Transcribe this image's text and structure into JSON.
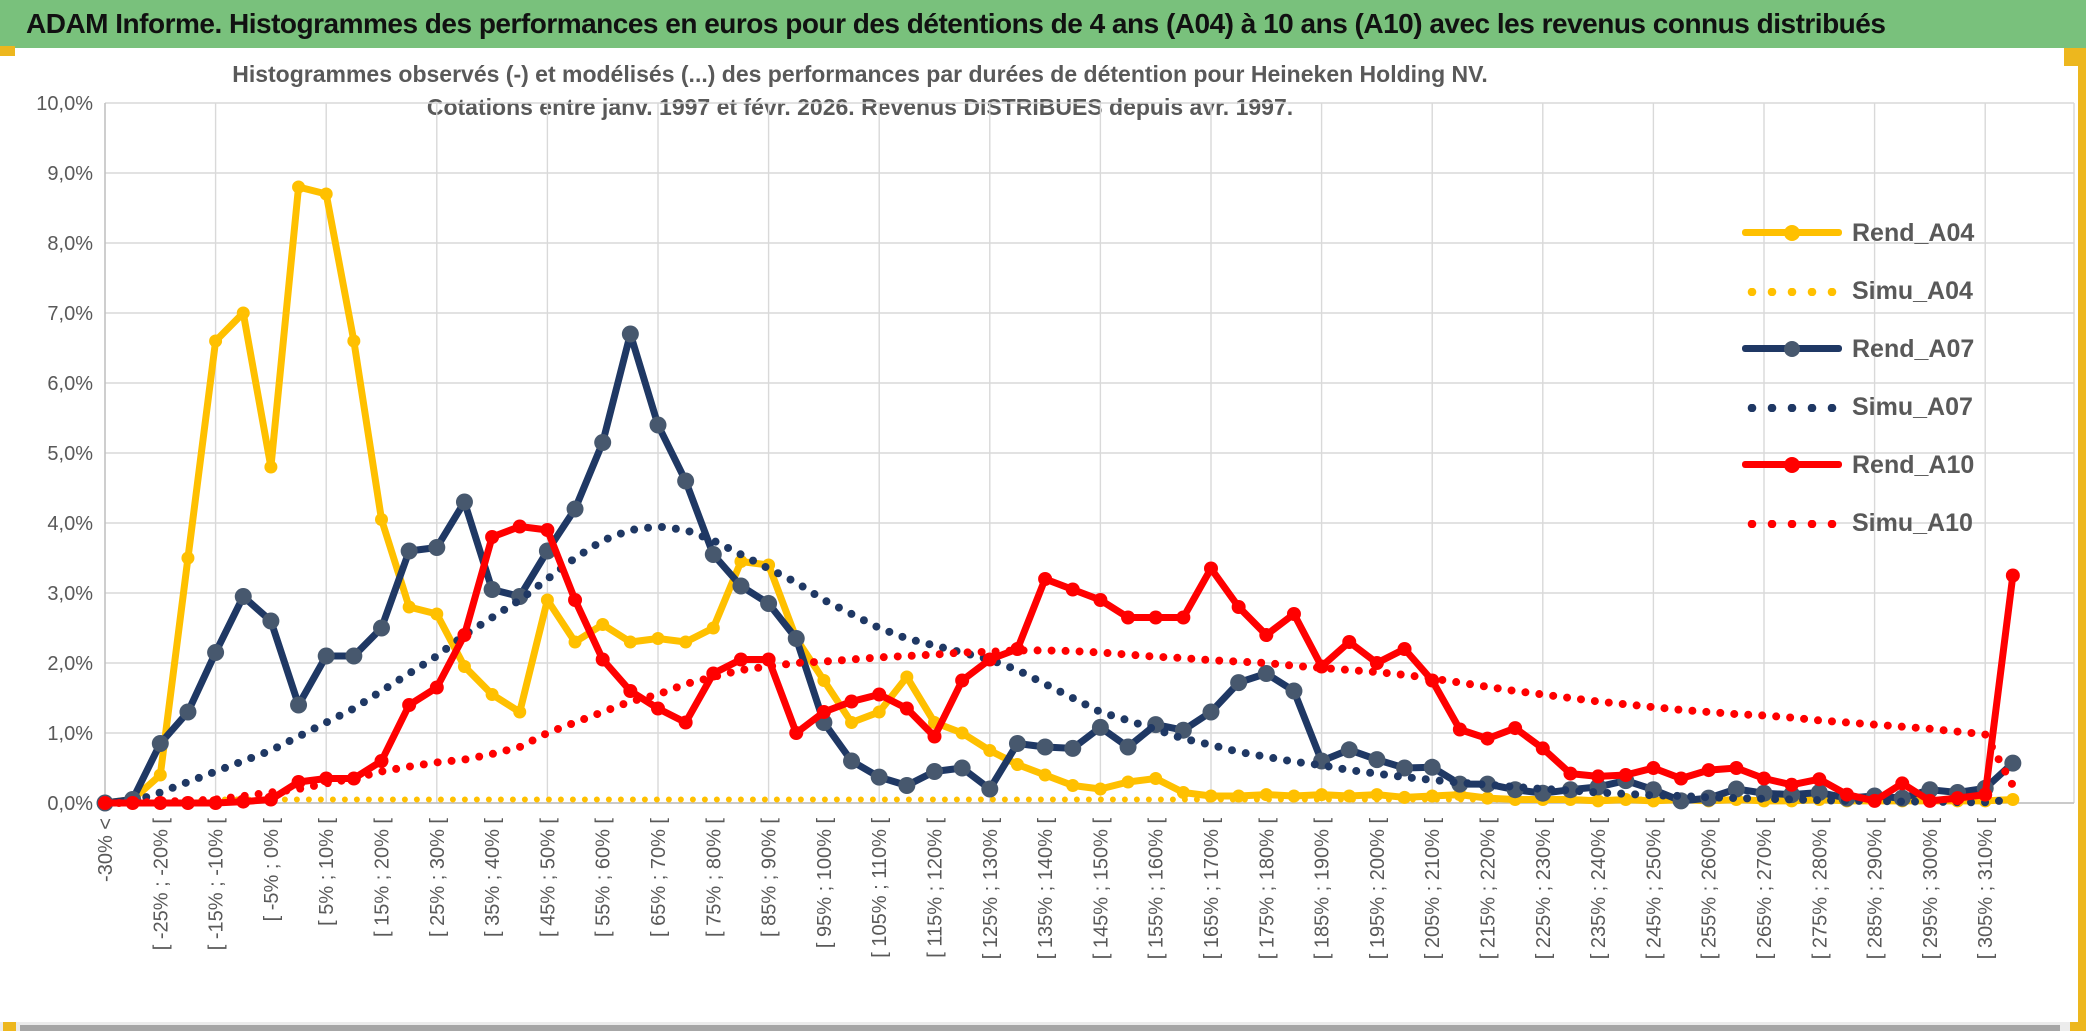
{
  "header": {
    "title": "ADAM Informe. Histogrammes des performances en euros pour des détentions de 4 ans (A04) à 10 ans (A10) avec les revenus connus distribués"
  },
  "colors": {
    "header_green": "#79C17C",
    "window_accent_gold": "#EDB71E",
    "series_gold": "#FFC000",
    "series_navy": "#1F3864",
    "series_navy_marker": "#47586E",
    "series_red": "#FF0000",
    "gridline": "#D9D9D9",
    "axis_text": "#595959"
  },
  "chart_data": {
    "type": "line",
    "title_line1": "Histogrammes observés (-) et modélisés (...) des performances par durées de détention pour Heineken Holding NV.",
    "title_line2": "Cotations entre janv. 1997 et févr. 2026. Revenus DISTRIBUES depuis avr. 1997.",
    "ylim": [
      0,
      10
    ],
    "grid": true,
    "legend_position": "right",
    "y_ticks": [
      "0,0%",
      "1,0%",
      "2,0%",
      "3,0%",
      "4,0%",
      "5,0%",
      "6,0%",
      "7,0%",
      "8,0%",
      "9,0%",
      "10,0%"
    ],
    "categories": [
      "-30% <",
      "",
      "[ -25% ; -20% [",
      "",
      "[ -15% ; -10% [",
      "",
      "[ -5% ; 0% [",
      "",
      "[ 5% ; 10% [",
      "",
      "[ 15% ; 20% [",
      "",
      "[ 25% ; 30% [",
      "",
      "[ 35% ; 40% [",
      "",
      "[ 45% ; 50% [",
      "",
      "[ 55% ; 60% [",
      "",
      "[ 65% ; 70% [",
      "",
      "[ 75% ; 80% [",
      "",
      "[ 85% ; 90% [",
      "",
      "[ 95% ; 100% [",
      "",
      "[ 105% ; 110% [",
      "",
      "[ 115% ; 120% [",
      "",
      "[ 125% ; 130% [",
      "",
      "[ 135% ; 140% [",
      "",
      "[ 145% ; 150% [",
      "",
      "[ 155% ; 160% [",
      "",
      "[ 165% ; 170% [",
      "",
      "[ 175% ; 180% [",
      "",
      "[ 185% ; 190% [",
      "",
      "[ 195% ; 200% [",
      "",
      "[ 205% ; 210% [",
      "",
      "[ 215% ; 220% [",
      "",
      "[ 225% ; 230% [",
      "",
      "[ 235% ; 240% [",
      "",
      "[ 245% ; 250% [",
      "",
      "[ 255% ; 260% [",
      "",
      "[ 265% ; 270% [",
      "",
      "[ 275% ; 280% [",
      "",
      "[ 285% ; 290% [",
      "",
      "[ 295% ; 300% [",
      "",
      "[ 305% ; 310% [",
      ""
    ],
    "series": [
      {
        "name": "Rend_A04",
        "style": "solid",
        "color": "#FFC000",
        "marker_color": "#FFC000",
        "marker_r": 6.5,
        "values": [
          0.0,
          0.05,
          0.4,
          3.5,
          6.6,
          7.0,
          4.8,
          8.8,
          8.7,
          6.6,
          4.05,
          2.8,
          2.7,
          1.95,
          1.55,
          1.3,
          2.9,
          2.3,
          2.55,
          2.3,
          2.35,
          2.3,
          2.5,
          3.45,
          3.4,
          2.35,
          1.75,
          1.15,
          1.3,
          1.8,
          1.15,
          1.0,
          0.75,
          0.55,
          0.4,
          0.25,
          0.2,
          0.3,
          0.35,
          0.15,
          0.1,
          0.1,
          0.12,
          0.1,
          0.12,
          0.1,
          0.12,
          0.08,
          0.1,
          0.12,
          0.07,
          0.05,
          0.05,
          0.05,
          0.03,
          0.05,
          0.03,
          0.05,
          0.03,
          0.05,
          0.03,
          0.03,
          0.05,
          0.03,
          0.03,
          0.03,
          0.03,
          0.03,
          0.03,
          0.05
        ]
      },
      {
        "name": "Simu_A04",
        "style": "dotted",
        "color": "#FFC000",
        "values": [
          0.0,
          0.0,
          0.0,
          0.02,
          0.05,
          0.05,
          0.05,
          0.05,
          0.05,
          0.05,
          0.05,
          0.05,
          0.05,
          0.05,
          0.05,
          0.05,
          0.05,
          0.05,
          0.05,
          0.05,
          0.05,
          0.05,
          0.05,
          0.05,
          0.05,
          0.05,
          0.05,
          0.05,
          0.05,
          0.05,
          0.05,
          0.05,
          0.05,
          0.05,
          0.05,
          0.05,
          0.05,
          0.05,
          0.05,
          0.05,
          0.05,
          0.05,
          0.05,
          0.05,
          0.05,
          0.05,
          0.05,
          0.05,
          0.05,
          0.05,
          0.05,
          0.05,
          0.05,
          0.05,
          0.05,
          0.05,
          0.05,
          0.05,
          0.05,
          0.05,
          0.05,
          0.05,
          0.05,
          0.05,
          0.05,
          0.05,
          0.05,
          0.05,
          0.05,
          0.05
        ]
      },
      {
        "name": "Rend_A07",
        "style": "solid",
        "color": "#1F3864",
        "marker_color": "#47586E",
        "marker_r": 8.5,
        "values": [
          0.0,
          0.05,
          0.85,
          1.3,
          2.15,
          2.95,
          2.6,
          1.4,
          2.1,
          2.1,
          2.5,
          3.6,
          3.65,
          4.3,
          3.05,
          2.95,
          3.6,
          4.2,
          5.15,
          6.7,
          5.4,
          4.6,
          3.55,
          3.1,
          2.85,
          2.35,
          1.15,
          0.6,
          0.37,
          0.25,
          0.45,
          0.5,
          0.2,
          0.85,
          0.8,
          0.78,
          1.08,
          0.8,
          1.12,
          1.04,
          1.3,
          1.72,
          1.85,
          1.6,
          0.6,
          0.76,
          0.62,
          0.5,
          0.51,
          0.27,
          0.27,
          0.19,
          0.14,
          0.19,
          0.23,
          0.32,
          0.19,
          0.03,
          0.07,
          0.2,
          0.14,
          0.12,
          0.15,
          0.07,
          0.1,
          0.07,
          0.19,
          0.15,
          0.21,
          0.57
        ]
      },
      {
        "name": "Simu_A07",
        "style": "dotted",
        "color": "#1F3864",
        "values": [
          0.0,
          0.02,
          0.15,
          0.3,
          0.45,
          0.6,
          0.75,
          0.95,
          1.15,
          1.35,
          1.6,
          1.85,
          2.1,
          2.4,
          2.65,
          2.9,
          3.2,
          3.5,
          3.75,
          3.9,
          3.95,
          3.9,
          3.75,
          3.55,
          3.35,
          3.15,
          2.9,
          2.7,
          2.5,
          2.35,
          2.25,
          2.15,
          2.05,
          1.9,
          1.7,
          1.5,
          1.3,
          1.18,
          1.05,
          0.92,
          0.83,
          0.73,
          0.66,
          0.59,
          0.54,
          0.47,
          0.42,
          0.37,
          0.33,
          0.29,
          0.26,
          0.23,
          0.2,
          0.18,
          0.15,
          0.13,
          0.11,
          0.1,
          0.08,
          0.07,
          0.06,
          0.05,
          0.04,
          0.03,
          0.03,
          0.02,
          0.02,
          0.01,
          0.01,
          0.05
        ]
      },
      {
        "name": "Rend_A10",
        "style": "solid",
        "color": "#FF0000",
        "marker_color": "#FF0000",
        "marker_r": 7,
        "values": [
          0.0,
          0.0,
          0.0,
          0.0,
          0.0,
          0.02,
          0.05,
          0.3,
          0.35,
          0.35,
          0.6,
          1.4,
          1.65,
          2.4,
          3.8,
          3.95,
          3.9,
          2.9,
          2.05,
          1.6,
          1.35,
          1.15,
          1.85,
          2.05,
          2.05,
          1.0,
          1.3,
          1.45,
          1.55,
          1.35,
          0.95,
          1.75,
          2.05,
          2.2,
          3.2,
          3.05,
          2.9,
          2.65,
          2.65,
          2.65,
          3.35,
          2.8,
          2.4,
          2.7,
          1.95,
          2.3,
          2.0,
          2.2,
          1.75,
          1.05,
          0.92,
          1.07,
          0.78,
          0.42,
          0.38,
          0.4,
          0.5,
          0.35,
          0.47,
          0.5,
          0.35,
          0.26,
          0.34,
          0.12,
          0.03,
          0.28,
          0.03,
          0.07,
          0.12,
          3.25
        ]
      },
      {
        "name": "Simu_A10",
        "style": "dotted",
        "color": "#FF0000",
        "values": [
          0.0,
          0.0,
          0.02,
          0.03,
          0.05,
          0.1,
          0.15,
          0.2,
          0.28,
          0.35,
          0.45,
          0.52,
          0.58,
          0.62,
          0.7,
          0.8,
          1.0,
          1.15,
          1.3,
          1.45,
          1.55,
          1.7,
          1.8,
          1.9,
          1.95,
          2.0,
          2.02,
          2.05,
          2.08,
          2.1,
          2.12,
          2.15,
          2.16,
          2.18,
          2.18,
          2.17,
          2.15,
          2.12,
          2.09,
          2.07,
          2.04,
          2.02,
          2.0,
          1.96,
          1.93,
          1.9,
          1.87,
          1.83,
          1.78,
          1.72,
          1.66,
          1.6,
          1.55,
          1.5,
          1.45,
          1.41,
          1.37,
          1.33,
          1.3,
          1.27,
          1.25,
          1.22,
          1.18,
          1.15,
          1.12,
          1.09,
          1.06,
          1.02,
          0.98,
          0.25
        ]
      }
    ]
  }
}
